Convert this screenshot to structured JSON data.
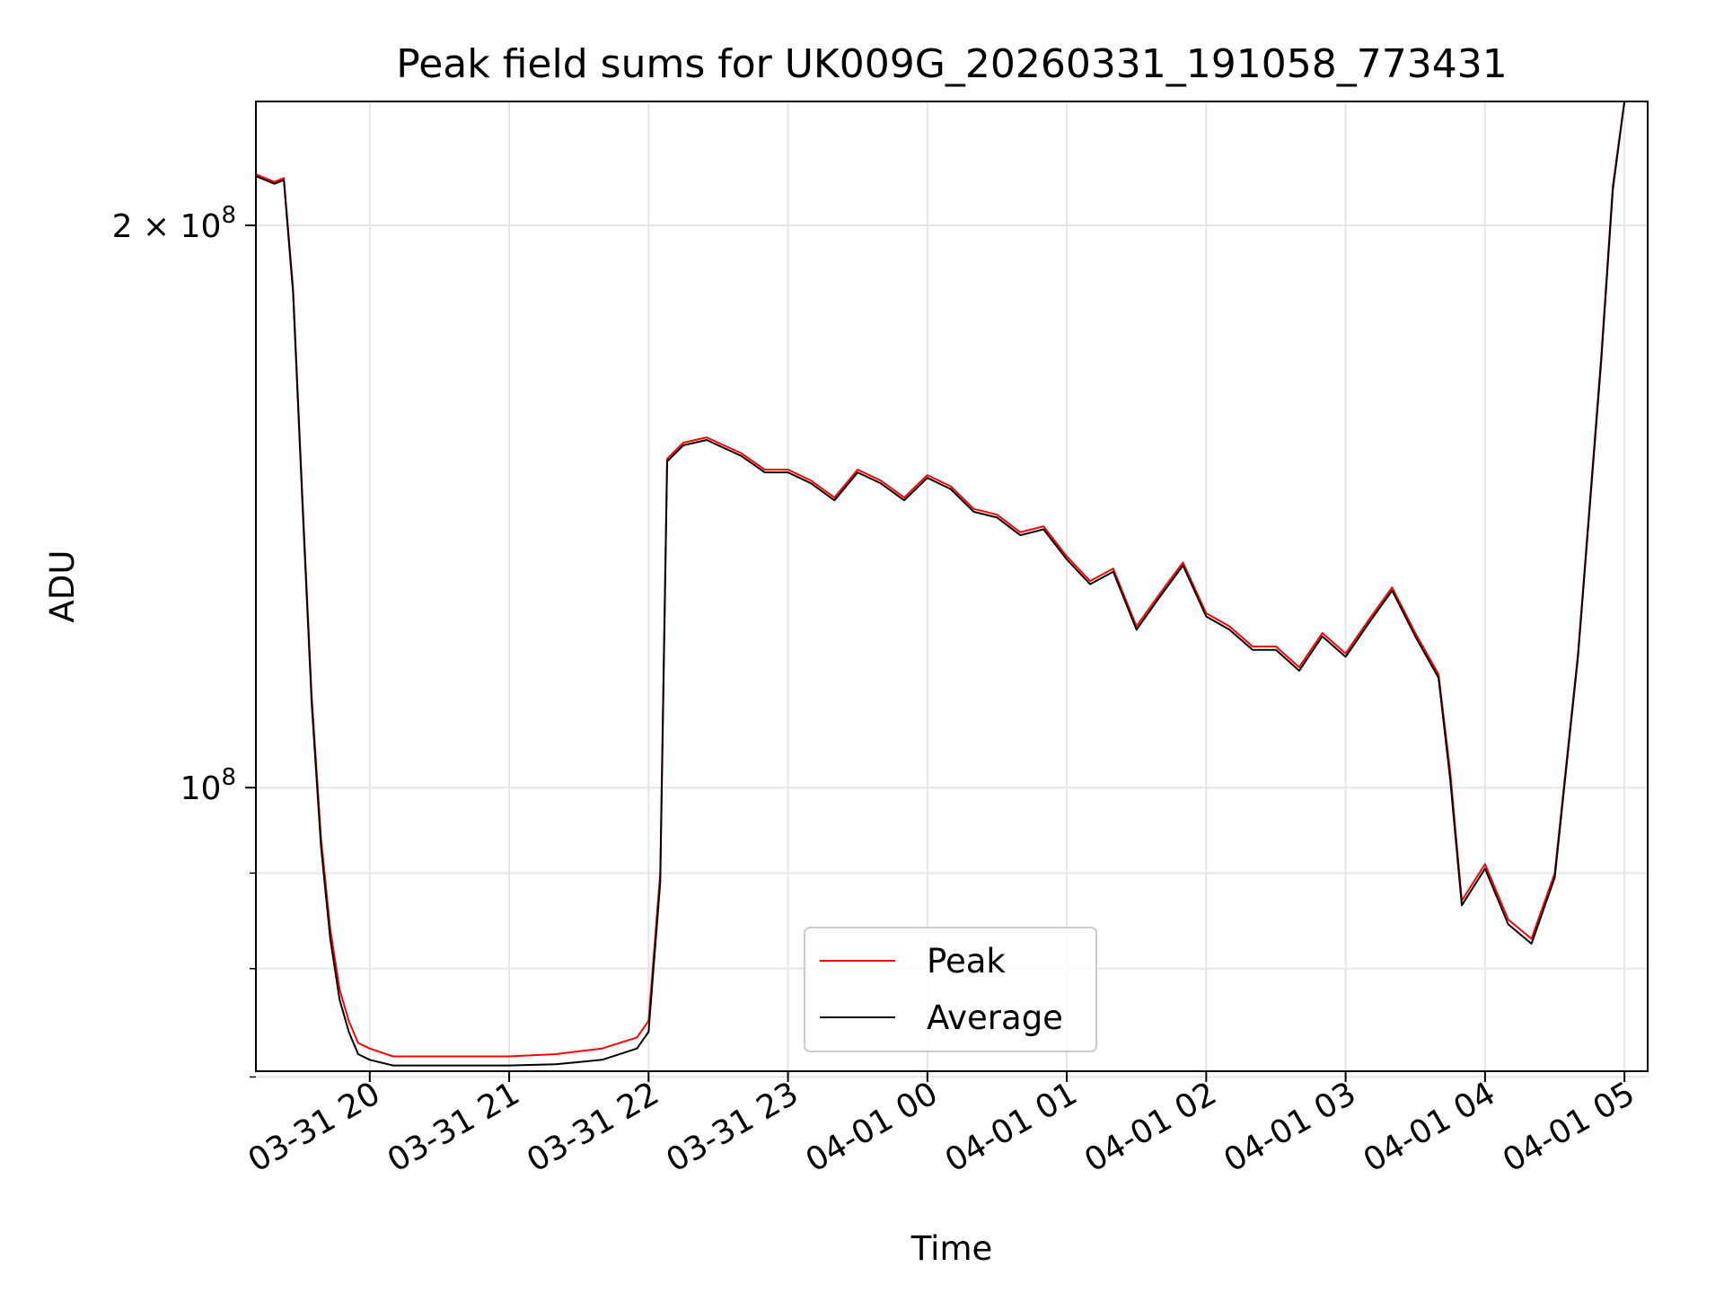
{
  "chart_data": {
    "type": "line",
    "title": "Peak field sums for UK009G_20260331_191058_773431",
    "xlabel": "Time",
    "ylabel": "ADU",
    "yscale": "log",
    "grid": true,
    "legend_position": "bottom-center",
    "xlim": [
      "2026-03-31 19:11",
      "2026-04-01 05:10"
    ],
    "ylim": [
      70500000,
      233000000
    ],
    "x_ticks": [
      {
        "value": "2026-03-31 20:00",
        "label": "03-31 20"
      },
      {
        "value": "2026-03-31 21:00",
        "label": "03-31 21"
      },
      {
        "value": "2026-03-31 22:00",
        "label": "03-31 22"
      },
      {
        "value": "2026-03-31 23:00",
        "label": "03-31 23"
      },
      {
        "value": "2026-04-01 00:00",
        "label": "04-01 00"
      },
      {
        "value": "2026-04-01 01:00",
        "label": "04-01 01"
      },
      {
        "value": "2026-04-01 02:00",
        "label": "04-01 02"
      },
      {
        "value": "2026-04-01 03:00",
        "label": "04-01 03"
      },
      {
        "value": "2026-04-01 04:00",
        "label": "04-01 04"
      },
      {
        "value": "2026-04-01 05:00",
        "label": "04-01 05"
      }
    ],
    "y_ticks": [
      {
        "value": 100000000,
        "base": "10",
        "exp": "8",
        "coef": ""
      },
      {
        "value": 200000000,
        "base": "10",
        "exp": "8",
        "coef": "2 × "
      }
    ],
    "y_minor_ticks": [
      70000000,
      80000000,
      90000000
    ],
    "series": [
      {
        "name": "Peak",
        "color": "#ff0000",
        "x": [
          "2026-03-31 19:11",
          "2026-03-31 19:19",
          "2026-03-31 19:23",
          "2026-03-31 19:27",
          "2026-03-31 19:31",
          "2026-03-31 19:35",
          "2026-03-31 19:39",
          "2026-03-31 19:43",
          "2026-03-31 19:47",
          "2026-03-31 19:51",
          "2026-03-31 19:55",
          "2026-03-31 20:00",
          "2026-03-31 20:10",
          "2026-03-31 20:20",
          "2026-03-31 20:40",
          "2026-03-31 21:00",
          "2026-03-31 21:20",
          "2026-03-31 21:40",
          "2026-03-31 21:55",
          "2026-03-31 22:00",
          "2026-03-31 22:05",
          "2026-03-31 22:08",
          "2026-03-31 22:15",
          "2026-03-31 22:25",
          "2026-03-31 22:40",
          "2026-03-31 22:50",
          "2026-03-31 23:00",
          "2026-03-31 23:10",
          "2026-03-31 23:20",
          "2026-03-31 23:30",
          "2026-03-31 23:40",
          "2026-03-31 23:50",
          "2026-04-01 00:00",
          "2026-04-01 00:10",
          "2026-04-01 00:20",
          "2026-04-01 00:30",
          "2026-04-01 00:40",
          "2026-04-01 00:50",
          "2026-04-01 01:00",
          "2026-04-01 01:10",
          "2026-04-01 01:20",
          "2026-04-01 01:30",
          "2026-04-01 01:40",
          "2026-04-01 01:50",
          "2026-04-01 02:00",
          "2026-04-01 02:10",
          "2026-04-01 02:20",
          "2026-04-01 02:30",
          "2026-04-01 02:40",
          "2026-04-01 02:50",
          "2026-04-01 03:00",
          "2026-04-01 03:10",
          "2026-04-01 03:20",
          "2026-04-01 03:30",
          "2026-04-01 03:40",
          "2026-04-01 03:45",
          "2026-04-01 03:50",
          "2026-04-01 04:00",
          "2026-04-01 04:10",
          "2026-04-01 04:20",
          "2026-04-01 04:30",
          "2026-04-01 04:40",
          "2026-04-01 04:50",
          "2026-04-01 04:55",
          "2026-04-01 05:00"
        ],
        "values": [
          213000000,
          211000000,
          212000000,
          185000000,
          143000000,
          112000000,
          94000000,
          84000000,
          78000000,
          75000000,
          73000000,
          72500000,
          71800000,
          71800000,
          71800000,
          71800000,
          72000000,
          72500000,
          73500000,
          75000000,
          90000000,
          150000000,
          153000000,
          154000000,
          151000000,
          148000000,
          148000000,
          146000000,
          143000000,
          148000000,
          146000000,
          143000000,
          147000000,
          145000000,
          141000000,
          140000000,
          137000000,
          138000000,
          133000000,
          129000000,
          131000000,
          122000000,
          127000000,
          132000000,
          124000000,
          122000000,
          119000000,
          119000000,
          116000000,
          121000000,
          118000000,
          123000000,
          128000000,
          121000000,
          115000000,
          102000000,
          87000000,
          91000000,
          85000000,
          83000000,
          90000000,
          118000000,
          170000000,
          210000000,
          233000000
        ]
      },
      {
        "name": "Average",
        "color": "#000000",
        "x": [
          "2026-03-31 19:11",
          "2026-03-31 19:19",
          "2026-03-31 19:23",
          "2026-03-31 19:27",
          "2026-03-31 19:31",
          "2026-03-31 19:35",
          "2026-03-31 19:39",
          "2026-03-31 19:43",
          "2026-03-31 19:47",
          "2026-03-31 19:51",
          "2026-03-31 19:55",
          "2026-03-31 20:00",
          "2026-03-31 20:10",
          "2026-03-31 20:20",
          "2026-03-31 20:40",
          "2026-03-31 21:00",
          "2026-03-31 21:20",
          "2026-03-31 21:40",
          "2026-03-31 21:55",
          "2026-03-31 22:00",
          "2026-03-31 22:05",
          "2026-03-31 22:08",
          "2026-03-31 22:15",
          "2026-03-31 22:25",
          "2026-03-31 22:40",
          "2026-03-31 22:50",
          "2026-03-31 23:00",
          "2026-03-31 23:10",
          "2026-03-31 23:20",
          "2026-03-31 23:30",
          "2026-03-31 23:40",
          "2026-03-31 23:50",
          "2026-04-01 00:00",
          "2026-04-01 00:10",
          "2026-04-01 00:20",
          "2026-04-01 00:30",
          "2026-04-01 00:40",
          "2026-04-01 00:50",
          "2026-04-01 01:00",
          "2026-04-01 01:10",
          "2026-04-01 01:20",
          "2026-04-01 01:30",
          "2026-04-01 01:40",
          "2026-04-01 01:50",
          "2026-04-01 02:00",
          "2026-04-01 02:10",
          "2026-04-01 02:20",
          "2026-04-01 02:30",
          "2026-04-01 02:40",
          "2026-04-01 02:50",
          "2026-04-01 03:00",
          "2026-04-01 03:10",
          "2026-04-01 03:20",
          "2026-04-01 03:30",
          "2026-04-01 03:40",
          "2026-04-01 03:45",
          "2026-04-01 03:50",
          "2026-04-01 04:00",
          "2026-04-01 04:10",
          "2026-04-01 04:20",
          "2026-04-01 04:30",
          "2026-04-01 04:40",
          "2026-04-01 04:50",
          "2026-04-01 04:55",
          "2026-04-01 05:00"
        ],
        "values": [
          212500000,
          210500000,
          211500000,
          184000000,
          142000000,
          111000000,
          93000000,
          83000000,
          77000000,
          74000000,
          72000000,
          71500000,
          71000000,
          71000000,
          71000000,
          71000000,
          71100000,
          71500000,
          72500000,
          74000000,
          89000000,
          149500000,
          152500000,
          153500000,
          150500000,
          147500000,
          147500000,
          145500000,
          142500000,
          147500000,
          145500000,
          142500000,
          146500000,
          144500000,
          140500000,
          139500000,
          136500000,
          137500000,
          132500000,
          128500000,
          130500000,
          121500000,
          126500000,
          131500000,
          123500000,
          121500000,
          118500000,
          118500000,
          115500000,
          120500000,
          117500000,
          122500000,
          127500000,
          120500000,
          114500000,
          101000000,
          86500000,
          90500000,
          84500000,
          82500000,
          89500000,
          117500000,
          169000000,
          209000000,
          233000000
        ]
      }
    ]
  }
}
